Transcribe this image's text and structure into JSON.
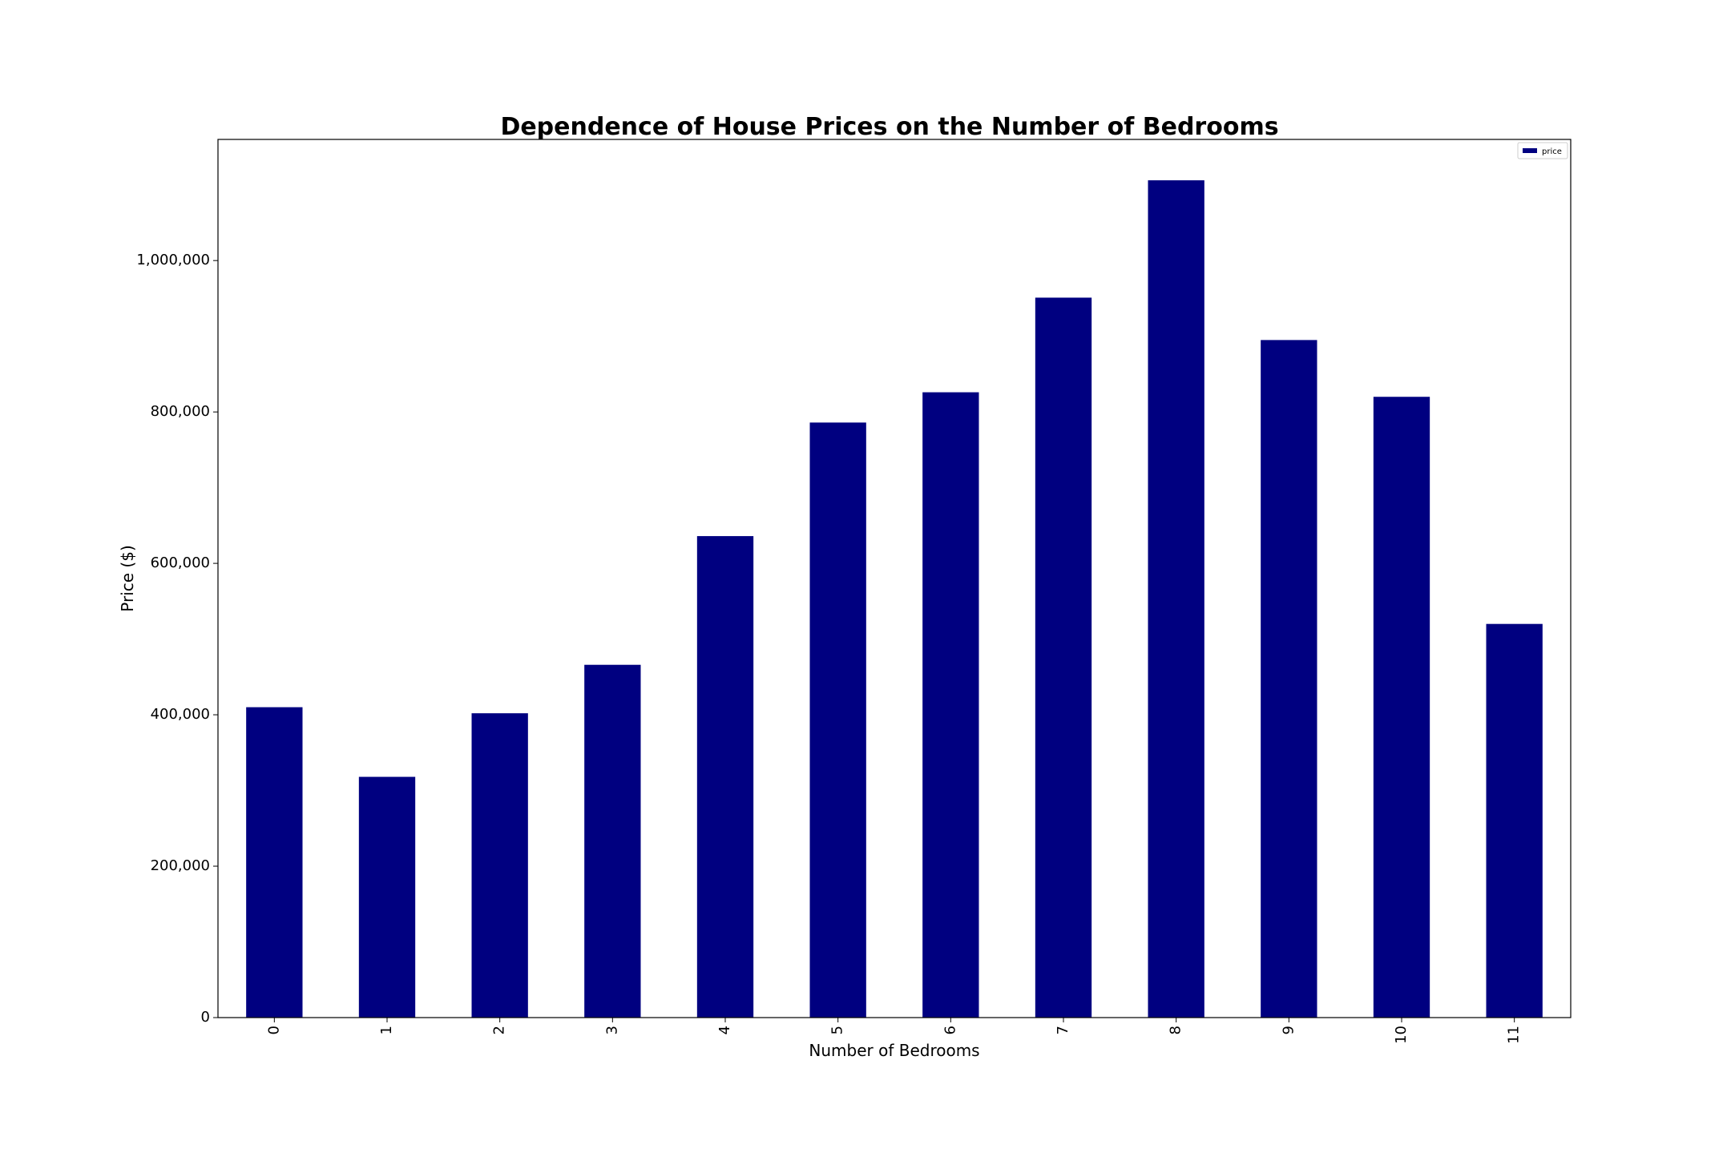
{
  "chart_data": {
    "type": "bar",
    "title": "Dependence of House Prices on the Number of Bedrooms",
    "xlabel": "Number of Bedrooms",
    "ylabel": "Price ($)",
    "categories": [
      "0",
      "1",
      "2",
      "3",
      "4",
      "5",
      "6",
      "7",
      "8",
      "9",
      "10",
      "11"
    ],
    "series": [
      {
        "name": "price",
        "values": [
          410000,
          318000,
          402000,
          466000,
          636000,
          786000,
          826000,
          951000,
          1106000,
          895000,
          820000,
          520000
        ]
      }
    ],
    "ylim": [
      0,
      1160000
    ],
    "yticks": [
      0,
      200000,
      400000,
      600000,
      800000,
      1000000
    ],
    "ytick_labels": [
      "0",
      "200,000",
      "400,000",
      "600,000",
      "800,000",
      "1,000,000"
    ],
    "grid": false,
    "legend_position": "top-right",
    "bar_color": "#000080"
  }
}
